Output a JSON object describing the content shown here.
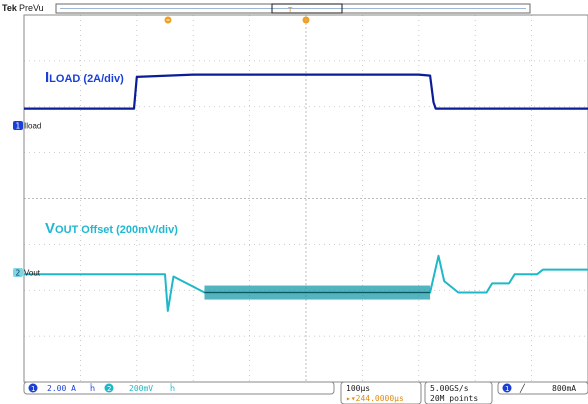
{
  "header": {
    "brand": "Tek",
    "mode": "PreVu"
  },
  "traces": {
    "ch1": {
      "label": "ILOAD (2A/div)",
      "label_cap": "I",
      "label_sub": "LOAD",
      "label_rest": " (2A/div)",
      "marker": "1",
      "ref": "Iload",
      "color": "#0a1d96"
    },
    "ch2": {
      "label": "VOUT Offset (200mV/div)",
      "label_cap": "V",
      "label_sub": "OUT",
      "label_rest": " Offset (200mV/div)",
      "marker": "2",
      "ref": "Vout",
      "color": "#1fb8c8"
    }
  },
  "status_bar": {
    "ch1_num": "1",
    "ch1_scale": "2.00 A",
    "ch1_bw": "ĥ",
    "ch2_num": "2",
    "ch2_scale": "200mV",
    "ch2_bw": "ĥ",
    "timebase": "100µs",
    "trigger_delay": "▸▾244.0000µs",
    "sample_rate": "5.00GS/s",
    "record_length": "20M points",
    "trig_ch": "1",
    "trig_slope": "╱",
    "trig_level": "800mA"
  },
  "chart_data": {
    "type": "line",
    "x_unit": "div",
    "xlim": [
      0,
      10
    ],
    "ylim_div": [
      -4,
      4
    ],
    "grid": true,
    "series": [
      {
        "name": "Iload",
        "unit": "A",
        "scale_per_div": 2.0,
        "x": [
          0,
          1.95,
          2.0,
          3.0,
          5.0,
          7.0,
          7.2,
          7.26,
          7.3,
          8.0,
          10.0
        ],
        "y_div": [
          1.96,
          1.96,
          2.65,
          2.7,
          2.7,
          2.7,
          2.68,
          2.1,
          1.96,
          1.96,
          1.96
        ]
      },
      {
        "name": "Vout",
        "unit": "V",
        "scale_per_div": 0.2,
        "x": [
          0,
          2.4,
          2.5,
          2.55,
          2.65,
          3.2,
          5.0,
          7.2,
          7.35,
          7.45,
          7.7,
          8.2,
          8.3,
          8.6,
          8.7,
          9.1,
          9.2,
          10.0
        ],
        "y_div": [
          -1.65,
          -1.65,
          -1.65,
          -2.45,
          -1.7,
          -2.05,
          -2.05,
          -2.05,
          -1.25,
          -1.8,
          -2.05,
          -2.05,
          -1.85,
          -1.85,
          -1.65,
          -1.65,
          -1.55,
          -1.55
        ]
      }
    ]
  }
}
